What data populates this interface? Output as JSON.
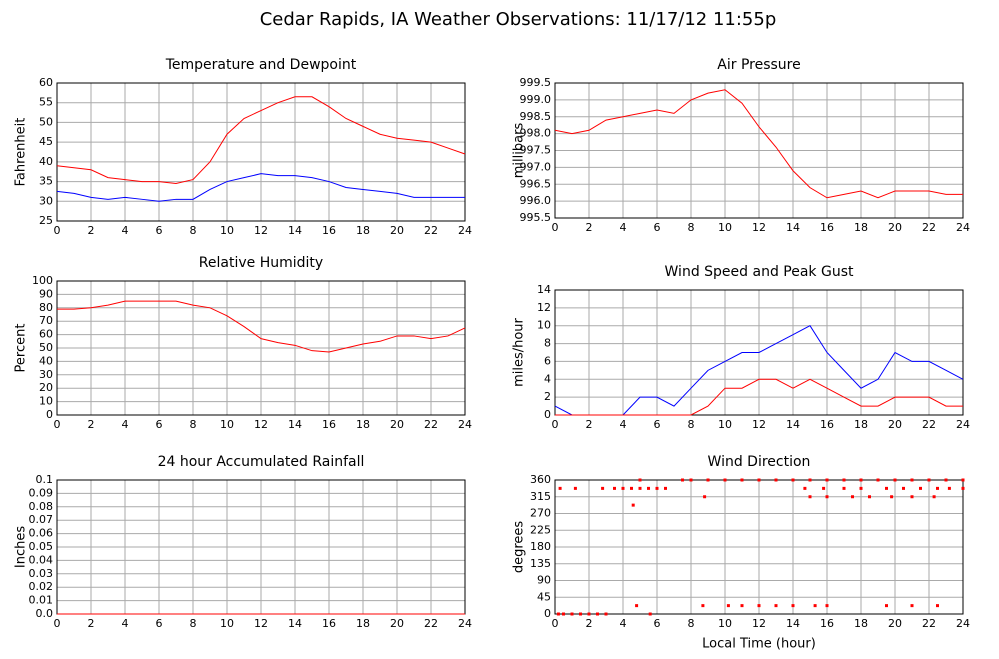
{
  "title": "Cedar Rapids, IA Weather Observations: 11/17/12 11:55p",
  "chart_data": [
    {
      "type": "line",
      "title": "Temperature and Dewpoint",
      "ylabel": "Fahrenheit",
      "x": [
        0,
        1,
        2,
        3,
        4,
        5,
        6,
        7,
        8,
        9,
        10,
        11,
        12,
        13,
        14,
        15,
        16,
        17,
        18,
        19,
        20,
        21,
        22,
        23,
        24
      ],
      "series": [
        {
          "color": "#ff0000",
          "values": [
            39,
            38.5,
            38,
            36,
            35.5,
            35,
            35,
            34.5,
            35.5,
            40,
            47,
            51,
            53,
            55,
            56.5,
            56.5,
            54,
            51,
            49,
            47,
            46,
            45.5,
            45,
            43.5,
            42
          ]
        },
        {
          "color": "#0000ff",
          "values": [
            32.5,
            32,
            31,
            30.5,
            31,
            30.5,
            30,
            30.5,
            30.5,
            33,
            35,
            36,
            37,
            36.5,
            36.5,
            36,
            35,
            33.5,
            33,
            32.5,
            32,
            31,
            31,
            31,
            31
          ]
        }
      ],
      "xlim": [
        0,
        24
      ],
      "xticks": [
        0,
        2,
        4,
        6,
        8,
        10,
        12,
        14,
        16,
        18,
        20,
        22,
        24
      ],
      "ylim": [
        25,
        60
      ],
      "yticks": [
        25,
        30,
        35,
        40,
        45,
        50,
        55,
        60
      ],
      "grid": true
    },
    {
      "type": "line",
      "title": "Air Pressure",
      "ylabel": "millibars",
      "x": [
        0,
        1,
        2,
        3,
        4,
        5,
        6,
        7,
        8,
        9,
        10,
        11,
        12,
        13,
        14,
        15,
        16,
        17,
        18,
        19,
        20,
        21,
        22,
        23,
        24
      ],
      "series": [
        {
          "color": "#ff0000",
          "values": [
            998.1,
            998.0,
            998.1,
            998.4,
            998.5,
            998.6,
            998.7,
            998.6,
            999.0,
            999.2,
            999.3,
            998.9,
            998.2,
            997.6,
            996.9,
            996.4,
            996.1,
            996.2,
            996.3,
            996.1,
            996.3,
            996.3,
            996.3,
            996.2,
            996.2
          ]
        }
      ],
      "xlim": [
        0,
        24
      ],
      "xticks": [
        0,
        2,
        4,
        6,
        8,
        10,
        12,
        14,
        16,
        18,
        20,
        22,
        24
      ],
      "ylim": [
        995.5,
        999.5
      ],
      "yticks": [
        995.5,
        {
          "value": 996,
          "label": "996.0"
        },
        996.5,
        {
          "value": 997,
          "label": "997.0"
        },
        997.5,
        {
          "value": 998,
          "label": "998.0"
        },
        998.5,
        {
          "value": 999,
          "label": "999.0"
        },
        999.5
      ],
      "grid": true
    },
    {
      "type": "line",
      "title": "Relative Humidity",
      "ylabel": "Percent",
      "x": [
        0,
        1,
        2,
        3,
        4,
        5,
        6,
        7,
        8,
        9,
        10,
        11,
        12,
        13,
        14,
        15,
        16,
        17,
        18,
        19,
        20,
        21,
        22,
        23,
        24
      ],
      "series": [
        {
          "color": "#ff0000",
          "values": [
            79,
            79,
            80,
            82,
            85,
            85,
            85,
            85,
            82,
            80,
            74,
            66,
            57,
            54,
            52,
            48,
            47,
            50,
            53,
            55,
            59,
            59,
            57,
            59,
            65
          ]
        }
      ],
      "xlim": [
        0,
        24
      ],
      "xticks": [
        0,
        2,
        4,
        6,
        8,
        10,
        12,
        14,
        16,
        18,
        20,
        22,
        24
      ],
      "ylim": [
        0,
        100
      ],
      "yticks": [
        0,
        10,
        20,
        30,
        40,
        50,
        60,
        70,
        80,
        90,
        100
      ],
      "grid": true
    },
    {
      "type": "line",
      "title": "Wind Speed and Peak Gust",
      "ylabel": "miles/hour",
      "x": [
        0,
        1,
        2,
        3,
        4,
        5,
        6,
        7,
        8,
        9,
        10,
        11,
        12,
        13,
        14,
        15,
        16,
        17,
        18,
        19,
        20,
        21,
        22,
        23,
        24
      ],
      "series": [
        {
          "color": "#0000ff",
          "values": [
            1,
            0,
            0,
            0,
            0,
            2,
            2,
            1,
            3,
            5,
            6,
            7,
            7,
            8,
            9,
            10,
            7,
            5,
            3,
            4,
            7,
            6,
            6,
            5,
            4
          ]
        },
        {
          "color": "#ff0000",
          "values": [
            0,
            0,
            0,
            0,
            0,
            0,
            0,
            0,
            0,
            1,
            3,
            3,
            4,
            4,
            3,
            4,
            3,
            2,
            1,
            1,
            2,
            2,
            2,
            1,
            1
          ]
        }
      ],
      "xlim": [
        0,
        24
      ],
      "xticks": [
        0,
        2,
        4,
        6,
        8,
        10,
        12,
        14,
        16,
        18,
        20,
        22,
        24
      ],
      "ylim": [
        0,
        14
      ],
      "yticks": [
        0,
        2,
        4,
        6,
        8,
        10,
        12,
        14
      ],
      "grid": true
    },
    {
      "type": "line",
      "title": "24 hour Accumulated Rainfall",
      "ylabel": "Inches",
      "x": [
        0,
        24
      ],
      "series": [
        {
          "color": "#ff0000",
          "values": [
            0,
            0
          ]
        }
      ],
      "xlim": [
        0,
        24
      ],
      "xticks": [
        0,
        2,
        4,
        6,
        8,
        10,
        12,
        14,
        16,
        18,
        20,
        22,
        24
      ],
      "ylim": [
        0,
        0.1
      ],
      "yticks": [
        {
          "value": 0,
          "label": "0.0"
        },
        0.01,
        0.02,
        0.03,
        0.04,
        0.05,
        0.06,
        0.07,
        0.08,
        0.09,
        0.1
      ],
      "grid": true
    },
    {
      "type": "scatter",
      "title": "Wind Direction",
      "ylabel": "degrees",
      "xlabel": "Local Time (hour)",
      "color": "#ff0000",
      "x": [
        0.2,
        0.5,
        1,
        1.5,
        2,
        2.5,
        3,
        5.6,
        0.3,
        1.2,
        2.8,
        3.5,
        4,
        4.5,
        5,
        5.5,
        6,
        6.5,
        14.7,
        15.8,
        17,
        18,
        19.5,
        20.5,
        21.5,
        22.5,
        23.2,
        24,
        4.6,
        5,
        7.5,
        8,
        9,
        10,
        11,
        12,
        13,
        14,
        15,
        16,
        17,
        18,
        19,
        20,
        21,
        22,
        23,
        24,
        8.8,
        15,
        16,
        17.5,
        18.5,
        19.8,
        21,
        22.3,
        4.8,
        8.7,
        10.2,
        11,
        12,
        13,
        14,
        15.3,
        16,
        19.5,
        21,
        22.5
      ],
      "values": [
        0,
        0,
        0,
        0,
        0,
        0,
        0,
        0,
        337.5,
        337.5,
        337.5,
        337.5,
        337.5,
        337.5,
        337.5,
        337.5,
        337.5,
        337.5,
        337.5,
        337.5,
        337.5,
        337.5,
        337.5,
        337.5,
        337.5,
        337.5,
        337.5,
        337.5,
        292.5,
        360,
        360,
        360,
        360,
        360,
        360,
        360,
        360,
        360,
        360,
        360,
        360,
        360,
        360,
        360,
        360,
        360,
        360,
        360,
        315,
        315,
        315,
        315,
        315,
        315,
        315,
        315,
        22.5,
        22.5,
        22.5,
        22.5,
        22.5,
        22.5,
        22.5,
        22.5,
        22.5,
        22.5,
        22.5,
        22.5
      ],
      "xlim": [
        0,
        24
      ],
      "xticks": [
        0,
        2,
        4,
        6,
        8,
        10,
        12,
        14,
        16,
        18,
        20,
        22,
        24
      ],
      "ylim": [
        0,
        360
      ],
      "yticks": [
        0,
        45,
        90,
        135,
        180,
        225,
        270,
        315,
        360
      ],
      "grid": true
    }
  ]
}
